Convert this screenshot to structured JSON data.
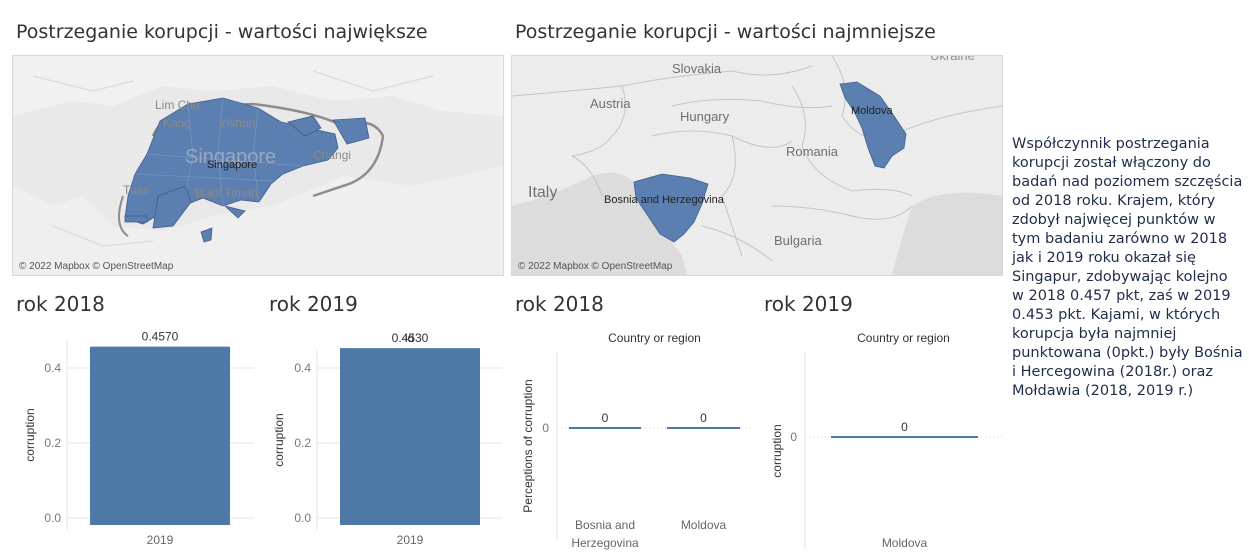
{
  "maps": {
    "left": {
      "title": "Postrzeganie korupcji - wartości największe",
      "credit": "© 2022 Mapbox © OpenStreetMap",
      "country_label": "Singapore",
      "place_labels": [
        "Lim Chu",
        "Kang",
        "Yishun",
        "Singapore",
        "Changi",
        "Tuas",
        "Bukit Timah"
      ]
    },
    "right": {
      "title": "Postrzeganie korupcji - wartości najmniejsze",
      "credit": "© 2022 Mapbox © OpenStreetMap",
      "country_labels": [
        "Moldova",
        "Bosnia and Herzegovina"
      ],
      "place_labels": [
        "Slovakia",
        "Austria",
        "Hungary",
        "Romania",
        "Italy",
        "Bulgaria",
        "Ukraine"
      ]
    }
  },
  "charts": [
    {
      "id": "top-2018",
      "section_title": "rok 2018",
      "chart_data": {
        "type": "bar",
        "categories": [
          "2019"
        ],
        "values": [
          0.457
        ],
        "data_labels": [
          "0.4570"
        ],
        "ylabel": "corruption",
        "yticks": [
          "0.0",
          "0.2",
          "0.4"
        ],
        "ylim": [
          0,
          0.48
        ]
      }
    },
    {
      "id": "top-2019",
      "section_title": "rok 2019",
      "chart_data": {
        "type": "bar",
        "header": "id",
        "categories": [
          "2019"
        ],
        "values": [
          0.453
        ],
        "data_labels": [
          "0.4530"
        ],
        "ylabel": "corruption",
        "yticks": [
          "0.0",
          "0.2",
          "0.4"
        ],
        "ylim": [
          0,
          0.48
        ]
      }
    },
    {
      "id": "bottom-2018",
      "section_title": "rok 2018",
      "chart_data": {
        "type": "bar",
        "header": "Country or region",
        "categories": [
          "Bosnia and Herzegovina",
          "Moldova"
        ],
        "values": [
          0,
          0
        ],
        "data_labels": [
          "0",
          "0"
        ],
        "ylabel": "Perceptions of corruption",
        "yticks": [
          "0"
        ]
      }
    },
    {
      "id": "bottom-2019",
      "section_title": "rok 2019",
      "chart_data": {
        "type": "bar",
        "header": "Country or region",
        "categories": [
          "Moldova"
        ],
        "values": [
          0
        ],
        "data_labels": [
          "0"
        ],
        "ylabel": "corruption",
        "yticks": [
          "0"
        ]
      }
    }
  ],
  "note": "Współczynnik postrzegania korupcji został włączony do badań nad poziomem szczęścia od 2018 roku. Krajem, który zdobył najwięcej punktów w tym badaniu zarówno w 2018 jak i 2019 roku okazał się Singapur, zdobywając kolejno w 2018 0.457 pkt, zaś w 2019 0.453 pkt. Kajami, w których korupcja była najmniej punktowana (0pkt.) były Bośnia i Hercegowina (2018r.) oraz Mołdawia (2018, 2019 r.)",
  "colors": {
    "bar": "#4e79a7",
    "map_fill": "#5b7fb0",
    "map_bg": "#e8e8e8",
    "land_line": "#bdbdbd",
    "water": "#d9d9d9",
    "grid": "#e6e6e6"
  }
}
